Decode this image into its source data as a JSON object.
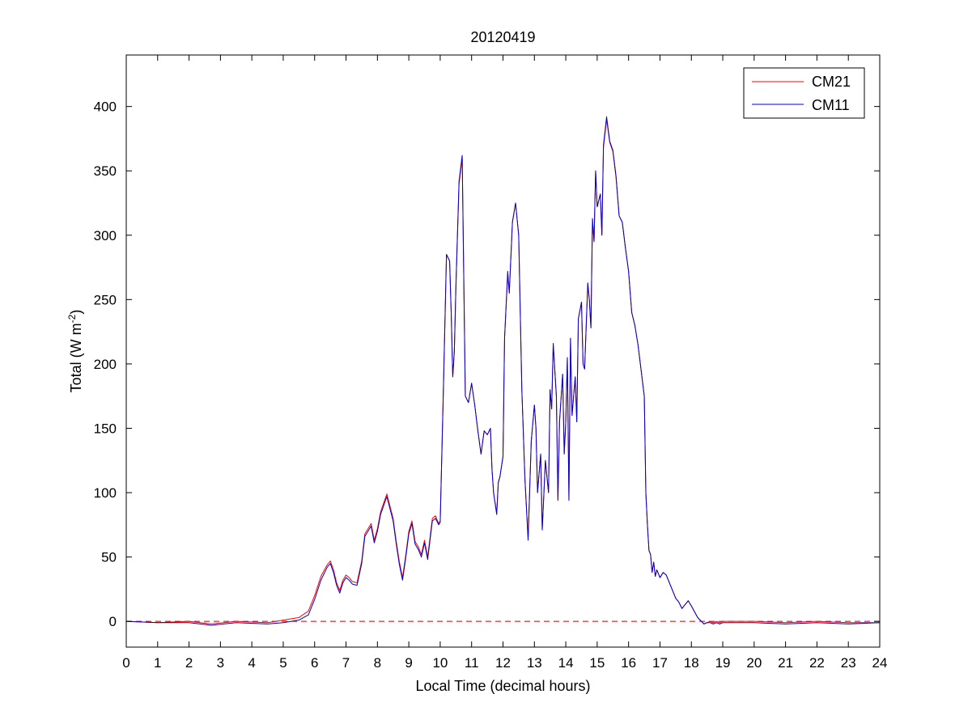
{
  "chart_data": {
    "type": "line",
    "title": "20120419",
    "xlabel": "Local Time (decimal hours)",
    "ylabel": "Total (W m^-2)",
    "ylabel_parts": {
      "base": "Total (W m",
      "superscript": "-2",
      "end": ")"
    },
    "xlim": [
      0,
      24
    ],
    "ylim": [
      -20,
      440
    ],
    "xticks": [
      0,
      1,
      2,
      3,
      4,
      5,
      6,
      7,
      8,
      9,
      10,
      11,
      12,
      13,
      14,
      15,
      16,
      17,
      18,
      19,
      20,
      21,
      22,
      23,
      24
    ],
    "yticks": [
      0,
      50,
      100,
      150,
      200,
      250,
      300,
      350,
      400
    ],
    "grid": false,
    "legend_position": "top-right",
    "reference_line": {
      "y": 0,
      "style": "dashed",
      "color": "#cc0000"
    },
    "series": [
      {
        "name": "CM21",
        "color": "#ff0000",
        "x": [
          0,
          1,
          2,
          2.7,
          3.5,
          4.5,
          5.0,
          5.5,
          5.8,
          6.0,
          6.2,
          6.4,
          6.5,
          6.6,
          6.7,
          6.8,
          6.9,
          7.0,
          7.1,
          7.2,
          7.35,
          7.5,
          7.6,
          7.8,
          7.9,
          8.0,
          8.1,
          8.3,
          8.5,
          8.6,
          8.7,
          8.8,
          8.9,
          9.0,
          9.1,
          9.2,
          9.3,
          9.4,
          9.5,
          9.6,
          9.75,
          9.85,
          9.95,
          10.0,
          10.1,
          10.2,
          10.3,
          10.35,
          10.4,
          10.45,
          10.5,
          10.6,
          10.7,
          10.8,
          10.9,
          11.0,
          11.1,
          11.2,
          11.3,
          11.4,
          11.5,
          11.6,
          11.65,
          11.7,
          11.8,
          11.85,
          11.9,
          12.0,
          12.05,
          12.15,
          12.2,
          12.3,
          12.4,
          12.5,
          12.6,
          12.7,
          12.8,
          12.9,
          13.0,
          13.05,
          13.1,
          13.2,
          13.25,
          13.3,
          13.35,
          13.45,
          13.5,
          13.55,
          13.6,
          13.7,
          13.75,
          13.8,
          13.9,
          13.95,
          14.0,
          14.05,
          14.1,
          14.15,
          14.2,
          14.3,
          14.35,
          14.4,
          14.5,
          14.55,
          14.6,
          14.7,
          14.75,
          14.8,
          14.85,
          14.9,
          14.95,
          15.0,
          15.1,
          15.15,
          15.2,
          15.3,
          15.4,
          15.5,
          15.6,
          15.7,
          15.8,
          15.9,
          16.0,
          16.1,
          16.2,
          16.3,
          16.4,
          16.5,
          16.55,
          16.6,
          16.65,
          16.7,
          16.75,
          16.8,
          16.85,
          16.9,
          17.0,
          17.1,
          17.2,
          17.3,
          17.4,
          17.5,
          17.6,
          17.7,
          17.8,
          17.9,
          18.0,
          18.2,
          18.4,
          18.5,
          18.6,
          18.7,
          18.8,
          18.9,
          19.0,
          19.2,
          19.5,
          20,
          21,
          22,
          23,
          24
        ],
        "y": [
          0,
          -1,
          0,
          -2,
          0,
          -1,
          1,
          3,
          8,
          20,
          35,
          44,
          47,
          40,
          30,
          24,
          32,
          36,
          34,
          31,
          30,
          47,
          68,
          76,
          63,
          72,
          85,
          99,
          80,
          62,
          46,
          34,
          51,
          70,
          78,
          62,
          58,
          52,
          63,
          50,
          80,
          82,
          76,
          78,
          180,
          285,
          280,
          240,
          190,
          210,
          260,
          340,
          360,
          175,
          170,
          185,
          168,
          148,
          130,
          148,
          145,
          150,
          118,
          100,
          84,
          108,
          112,
          128,
          220,
          270,
          255,
          310,
          325,
          300,
          180,
          110,
          65,
          140,
          168,
          150,
          100,
          130,
          72,
          98,
          125,
          100,
          180,
          165,
          215,
          175,
          95,
          155,
          192,
          130,
          155,
          205,
          95,
          220,
          160,
          190,
          155,
          235,
          248,
          200,
          196,
          262,
          250,
          228,
          312,
          295,
          350,
          322,
          332,
          300,
          368,
          390,
          372,
          365,
          345,
          315,
          310,
          290,
          272,
          240,
          230,
          215,
          195,
          175,
          100,
          75,
          55,
          52,
          38,
          46,
          35,
          40,
          34,
          38,
          36,
          30,
          24,
          18,
          15,
          10,
          13,
          16,
          12,
          3,
          -2,
          -1,
          0,
          -1,
          0,
          -1,
          0,
          0,
          0,
          0,
          -1,
          0,
          -1,
          -1
        ]
      },
      {
        "name": "CM11",
        "color": "#0000cc",
        "x": [
          0,
          1,
          2,
          2.7,
          3.5,
          4.5,
          5.0,
          5.5,
          5.8,
          6.0,
          6.2,
          6.4,
          6.5,
          6.6,
          6.7,
          6.8,
          6.9,
          7.0,
          7.1,
          7.2,
          7.35,
          7.5,
          7.6,
          7.8,
          7.9,
          8.0,
          8.1,
          8.3,
          8.5,
          8.6,
          8.7,
          8.8,
          8.9,
          9.0,
          9.1,
          9.2,
          9.3,
          9.4,
          9.5,
          9.6,
          9.75,
          9.85,
          9.95,
          10.0,
          10.1,
          10.2,
          10.3,
          10.35,
          10.4,
          10.45,
          10.5,
          10.6,
          10.7,
          10.8,
          10.9,
          11.0,
          11.1,
          11.2,
          11.3,
          11.4,
          11.5,
          11.6,
          11.65,
          11.7,
          11.8,
          11.85,
          11.9,
          12.0,
          12.05,
          12.15,
          12.2,
          12.3,
          12.4,
          12.5,
          12.6,
          12.7,
          12.8,
          12.9,
          13.0,
          13.05,
          13.1,
          13.2,
          13.25,
          13.3,
          13.35,
          13.45,
          13.5,
          13.55,
          13.6,
          13.7,
          13.75,
          13.8,
          13.9,
          13.95,
          14.0,
          14.05,
          14.1,
          14.15,
          14.2,
          14.3,
          14.35,
          14.4,
          14.5,
          14.55,
          14.6,
          14.7,
          14.75,
          14.8,
          14.85,
          14.9,
          14.95,
          15.0,
          15.1,
          15.15,
          15.2,
          15.3,
          15.4,
          15.5,
          15.6,
          15.7,
          15.8,
          15.9,
          16.0,
          16.1,
          16.2,
          16.3,
          16.4,
          16.5,
          16.55,
          16.6,
          16.65,
          16.7,
          16.75,
          16.8,
          16.85,
          16.9,
          17.0,
          17.1,
          17.2,
          17.3,
          17.4,
          17.5,
          17.6,
          17.7,
          17.8,
          17.9,
          18.0,
          18.2,
          18.4,
          18.5,
          18.6,
          18.7,
          18.8,
          18.9,
          19.0,
          19.2,
          19.5,
          20,
          21,
          22,
          23,
          24
        ],
        "y": [
          0,
          -1,
          -1,
          -3,
          -1,
          -2,
          -1,
          1,
          5,
          17,
          32,
          42,
          45,
          38,
          28,
          22,
          30,
          34,
          32,
          29,
          28,
          45,
          66,
          74,
          61,
          70,
          83,
          97,
          78,
          60,
          44,
          32,
          49,
          68,
          76,
          60,
          56,
          50,
          61,
          48,
          78,
          80,
          75,
          77,
          178,
          285,
          280,
          240,
          190,
          210,
          260,
          342,
          362,
          175,
          170,
          185,
          168,
          148,
          130,
          148,
          145,
          150,
          118,
          100,
          83,
          108,
          112,
          128,
          220,
          272,
          255,
          310,
          325,
          300,
          180,
          110,
          63,
          140,
          168,
          150,
          100,
          130,
          71,
          98,
          125,
          100,
          180,
          165,
          216,
          175,
          94,
          155,
          192,
          130,
          155,
          205,
          94,
          220,
          160,
          190,
          155,
          235,
          248,
          200,
          196,
          263,
          250,
          228,
          313,
          295,
          350,
          322,
          332,
          300,
          370,
          392,
          373,
          366,
          346,
          315,
          310,
          290,
          272,
          240,
          230,
          215,
          195,
          175,
          100,
          75,
          55,
          52,
          38,
          46,
          35,
          40,
          34,
          38,
          36,
          30,
          24,
          18,
          15,
          10,
          13,
          16,
          12,
          3,
          -2,
          -1,
          -1,
          -2,
          -1,
          -2,
          -1,
          -1,
          -1,
          -1,
          -2,
          -1,
          -2,
          -1
        ]
      }
    ]
  }
}
